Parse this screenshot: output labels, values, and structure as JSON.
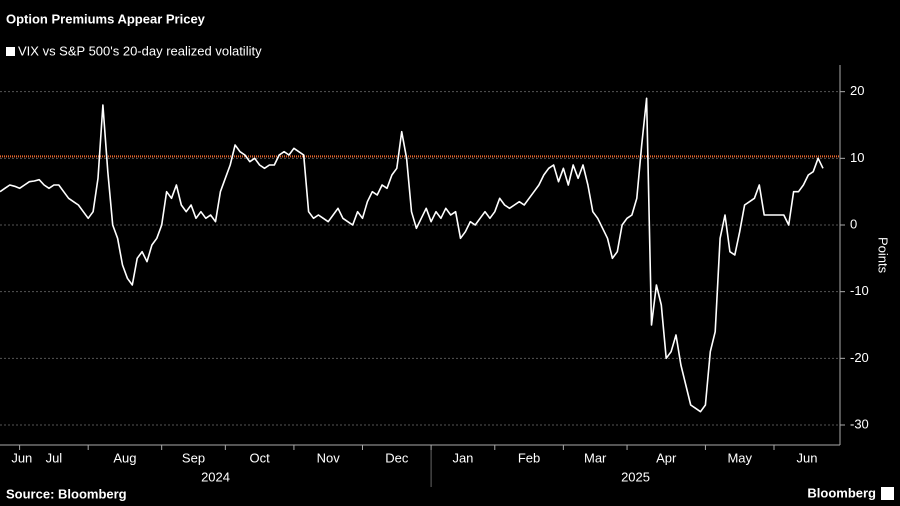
{
  "chart_data": {
    "type": "line",
    "title": "Option Premiums Appear Pricey",
    "y_label": "Points",
    "source": "Source: Bloomberg",
    "brand": "Bloomberg",
    "categories": [
      "Jun",
      null,
      null,
      null,
      "Jul",
      null,
      null,
      null,
      null,
      null,
      null,
      null,
      null,
      null,
      null,
      null,
      null,
      null,
      "Aug",
      null,
      null,
      null,
      null,
      null,
      null,
      null,
      null,
      null,
      null,
      null,
      null,
      null,
      null,
      "Sep",
      null,
      null,
      null,
      null,
      null,
      null,
      null,
      null,
      null,
      null,
      null,
      null,
      "Oct",
      null,
      null,
      null,
      null,
      null,
      null,
      null,
      null,
      null,
      null,
      null,
      null,
      null,
      "Nov",
      null,
      null,
      null,
      null,
      null,
      null,
      null,
      null,
      null,
      null,
      null,
      null,
      null,
      "Dec",
      null,
      null,
      null,
      null,
      null,
      null,
      null,
      null,
      null,
      null,
      null,
      null,
      null,
      "Jan",
      null,
      null,
      null,
      null,
      null,
      null,
      null,
      null,
      null,
      null,
      null,
      null,
      "Feb",
      null,
      null,
      null,
      null,
      null,
      null,
      null,
      null,
      null,
      null,
      null,
      null,
      null,
      "Mar",
      null,
      null,
      null,
      null,
      null,
      null,
      null,
      null,
      null,
      null,
      null,
      null,
      "Apr",
      null,
      null,
      null,
      null,
      null,
      null,
      null,
      null,
      null,
      null,
      null,
      null,
      null,
      null,
      null,
      "May",
      null,
      null,
      null,
      null,
      null,
      null,
      null,
      null,
      null,
      null,
      null,
      null,
      null,
      "Jun",
      null,
      null,
      null,
      null,
      null,
      null,
      null,
      null,
      null,
      null
    ],
    "years": [
      "2024",
      null,
      null,
      null,
      null,
      null,
      null,
      null,
      null,
      null,
      null,
      null,
      null,
      null,
      null,
      null,
      null,
      null,
      null,
      null,
      null,
      null,
      null,
      null,
      null,
      null,
      null,
      null,
      null,
      null,
      null,
      null,
      null,
      null,
      null,
      null,
      null,
      null,
      null,
      null,
      null,
      null,
      null,
      null,
      null,
      null,
      null,
      null,
      null,
      null,
      null,
      null,
      null,
      null,
      null,
      null,
      null,
      null,
      null,
      null,
      null,
      null,
      null,
      null,
      null,
      null,
      null,
      null,
      null,
      null,
      null,
      null,
      null,
      null,
      null,
      null,
      null,
      null,
      null,
      null,
      null,
      null,
      null,
      null,
      null,
      null,
      null,
      null,
      "2025",
      null,
      null,
      null,
      null,
      null,
      null,
      null,
      null,
      null,
      null,
      null,
      null,
      null,
      null,
      null,
      null,
      null,
      null,
      null,
      null,
      null,
      null,
      null,
      null,
      null,
      null,
      null,
      null,
      null,
      null,
      null,
      null,
      null,
      null,
      null,
      null,
      null,
      null,
      null,
      null,
      null,
      null,
      null,
      null,
      null,
      null,
      null,
      null,
      null,
      null,
      null,
      null,
      null,
      null,
      null,
      null,
      null,
      null,
      null,
      null,
      null,
      null,
      null,
      null,
      null,
      null,
      null,
      null,
      null,
      null,
      null,
      null,
      null,
      null,
      null,
      null,
      null,
      null,
      null,
      null
    ],
    "series": [
      {
        "name": "VIX vs S&P 500's 20-day realized volatility",
        "color": "#ffffff",
        "values": [
          5,
          5.5,
          6,
          5.8,
          5.5,
          6,
          6.5,
          6.6,
          6.8,
          6,
          5.5,
          6,
          6,
          5,
          4,
          3.5,
          3,
          2,
          1,
          2,
          7,
          18,
          8,
          0,
          -2,
          -6,
          -8,
          -9,
          -5,
          -4,
          -5.5,
          -3,
          -2,
          0,
          5,
          4,
          6,
          3,
          2,
          3,
          1,
          2,
          1,
          1.5,
          0.5,
          5,
          7,
          9,
          12,
          11,
          10.5,
          9.5,
          10,
          9,
          8.5,
          9,
          9,
          10.5,
          11,
          10.5,
          11.5,
          11,
          10.5,
          2,
          1,
          1.5,
          1,
          0.5,
          1.5,
          2.5,
          1,
          0.5,
          0,
          2,
          1,
          3.5,
          5,
          4.5,
          6,
          5.5,
          7.5,
          8.5,
          14,
          10,
          2,
          -0.5,
          1,
          2.5,
          0.5,
          2,
          1,
          2.5,
          1.5,
          2,
          -2,
          -1,
          0.5,
          0,
          1,
          2,
          1,
          2,
          4,
          3,
          2.5,
          3,
          3.5,
          3,
          4,
          5,
          6,
          7.5,
          8.5,
          9,
          6.5,
          8.5,
          6,
          9,
          7,
          9,
          6,
          2,
          1,
          -0.5,
          -2,
          -5,
          -4,
          0,
          1,
          1.5,
          4,
          12,
          19,
          -15,
          -9,
          -12,
          -20,
          -19,
          -16.5,
          -21,
          -24,
          -27,
          -27.5,
          -28,
          -27,
          -19,
          -16,
          -2,
          1.5,
          -4,
          -4.5,
          -1,
          3,
          3.5,
          4,
          6,
          1.5,
          1.5,
          1.5,
          1.5,
          1.5,
          0,
          5,
          5,
          6,
          7.5,
          8,
          10,
          8.5
        ]
      }
    ],
    "reference_line": {
      "value": 10.3,
      "color": "#e8662e"
    },
    "ylim": [
      -33,
      24
    ],
    "yticks": [
      -30,
      -20,
      -10,
      0,
      10,
      20
    ],
    "grid": true
  }
}
